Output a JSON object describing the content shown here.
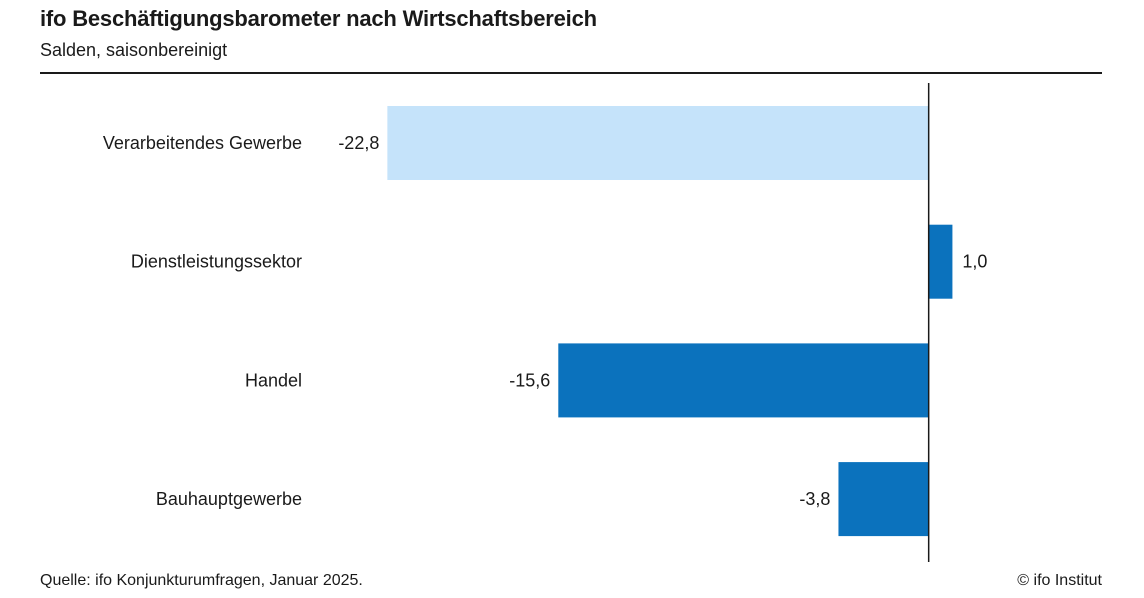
{
  "header": {
    "title": "ifo Beschäftigungsbarometer nach Wirtschaftsbereich",
    "subtitle": "Salden, saisonbereinigt"
  },
  "footer": {
    "source": "Quelle: ifo Konjunkturumfragen, Januar 2025.",
    "copyright": "© ifo Institut"
  },
  "chart_data": {
    "type": "bar",
    "orientation": "horizontal",
    "categories": [
      "Verarbeitendes Gewerbe",
      "Dienstleistungssektor",
      "Handel",
      "Bauhauptgewerbe"
    ],
    "values": [
      -22.8,
      1.0,
      -15.6,
      -3.8
    ],
    "value_labels": [
      "-22,8",
      "1,0",
      "-15,6",
      "-3,8"
    ],
    "bar_colors": [
      "#c5e3fa",
      "#0b72bd",
      "#0b72bd",
      "#0b72bd"
    ],
    "label_color": "#1a1a1a",
    "axis_color": "#1a1a1a",
    "xlim": [
      -26.1,
      7.3
    ],
    "grid": false,
    "legend": "none"
  }
}
